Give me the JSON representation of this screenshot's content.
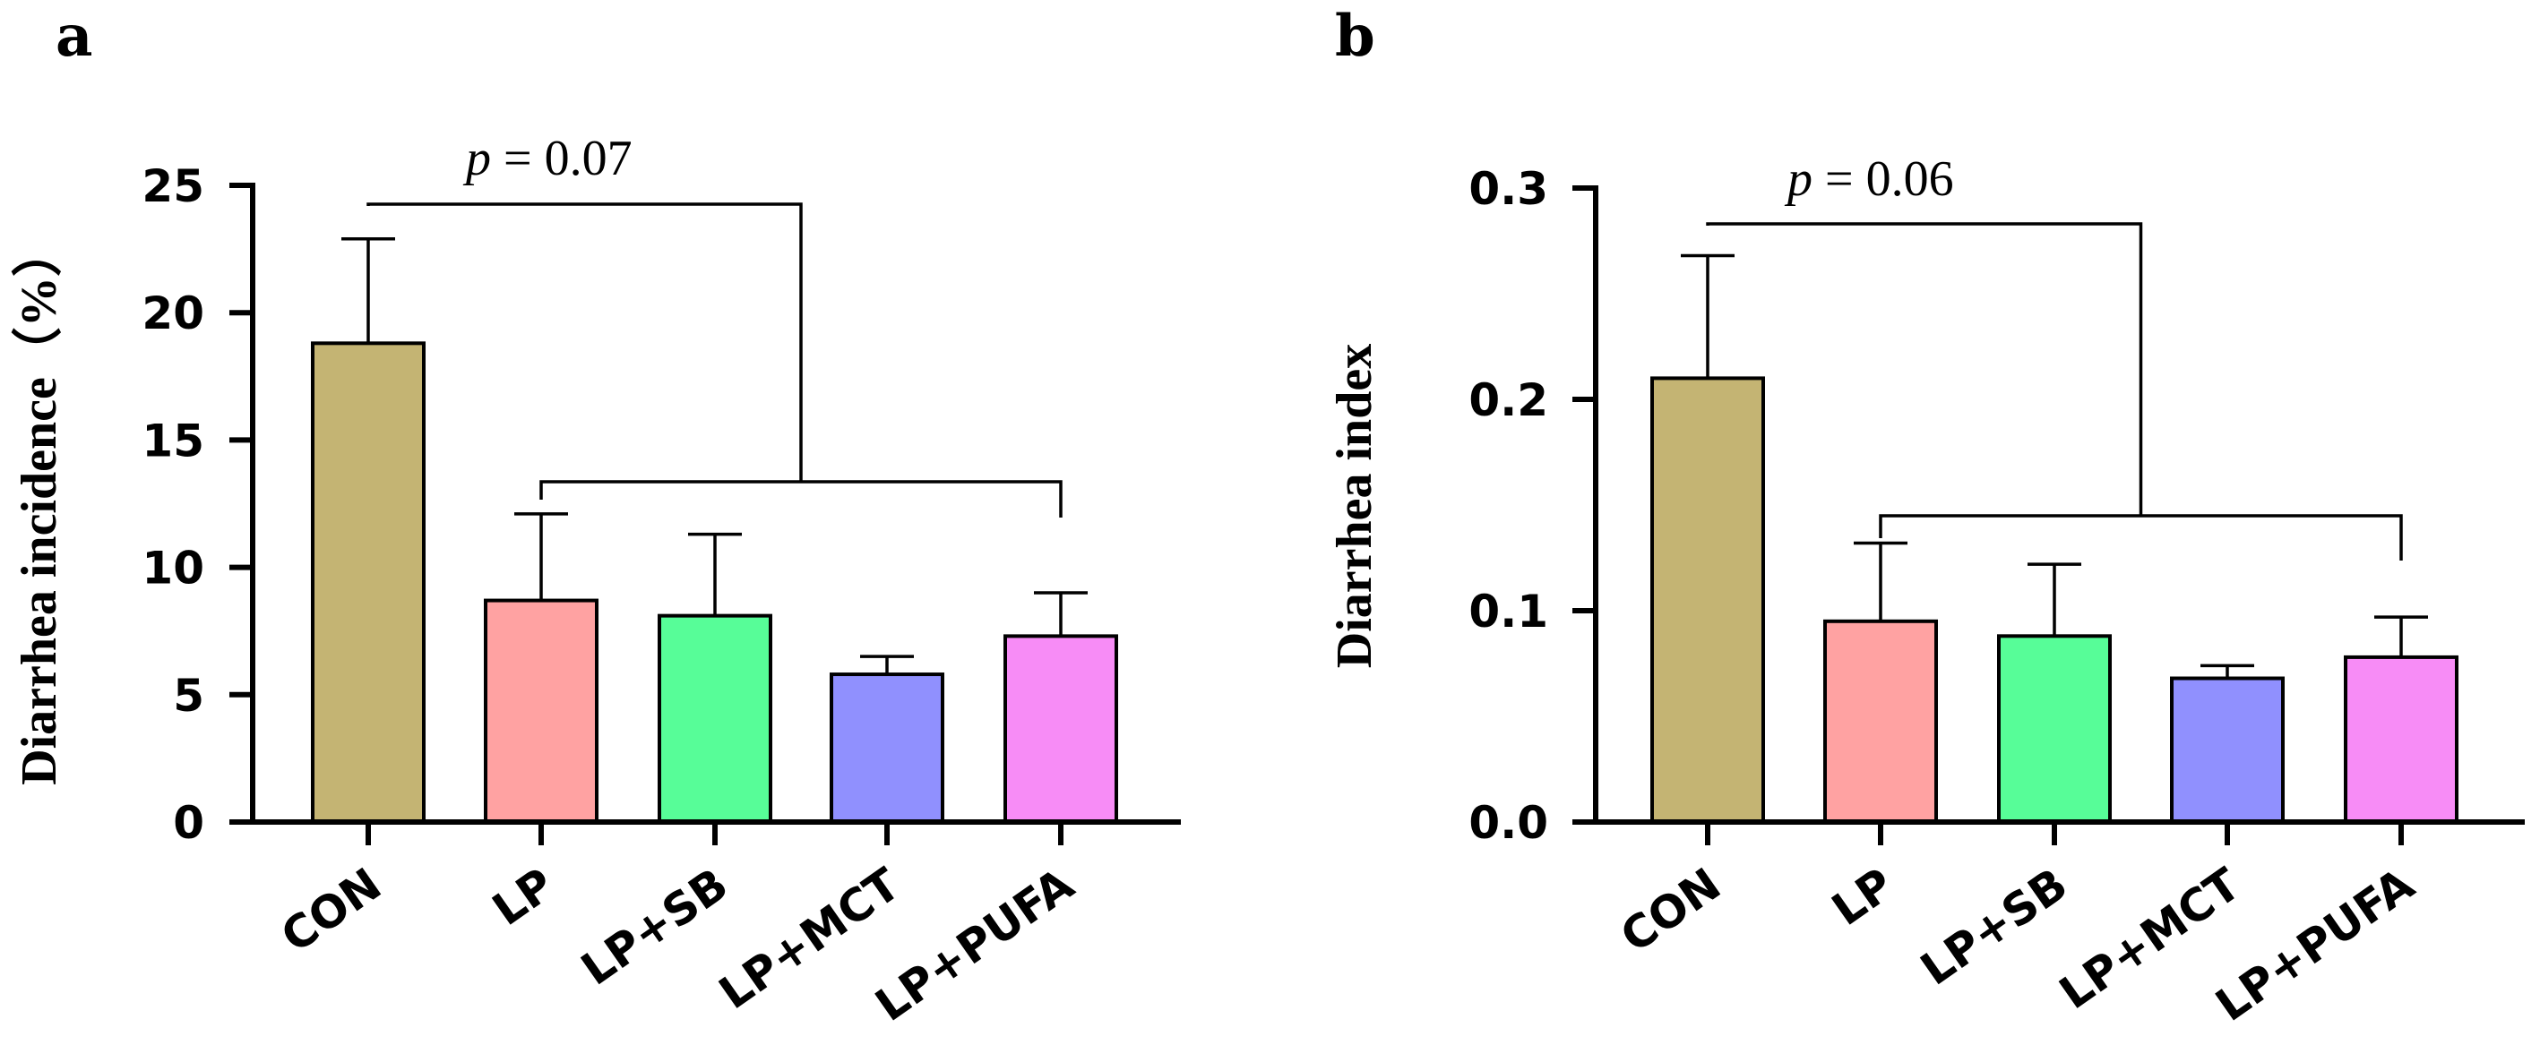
{
  "chart_data": [
    {
      "panel": "a",
      "type": "bar",
      "ylabel": "Diarrhea incidence（%）",
      "ylim": [
        0,
        25
      ],
      "yticks": [
        0,
        5,
        10,
        15,
        20,
        25
      ],
      "ytick_labels": [
        "0",
        "5",
        "10",
        "15",
        "20",
        "25"
      ],
      "categories": [
        "CON",
        "LP",
        "LP+SB",
        "LP+MCT",
        "LP+PUFA"
      ],
      "values": [
        18.8,
        8.7,
        8.1,
        5.8,
        7.3
      ],
      "errors": [
        4.1,
        3.4,
        3.2,
        0.7,
        1.7
      ],
      "colors": [
        "#c4b473",
        "#ffa2a2",
        "#57fd98",
        "#9090fe",
        "#f78cf6"
      ],
      "annotation": {
        "var": "p",
        "rest": " = 0.07"
      }
    },
    {
      "panel": "b",
      "type": "bar",
      "ylabel": "Diarrhea index",
      "ylim": [
        0,
        0.3
      ],
      "yticks": [
        0,
        0.1,
        0.2,
        0.3
      ],
      "ytick_labels": [
        "0.0",
        "0.1",
        "0.2",
        "0.3"
      ],
      "categories": [
        "CON",
        "LP",
        "LP+SB",
        "LP+MCT",
        "LP+PUFA"
      ],
      "values": [
        0.21,
        0.095,
        0.088,
        0.068,
        0.078
      ],
      "errors": [
        0.058,
        0.037,
        0.034,
        0.006,
        0.019
      ],
      "colors": [
        "#c4b473",
        "#ffa2a2",
        "#57fd98",
        "#9090fe",
        "#f78cf6"
      ],
      "annotation": {
        "var": "p",
        "rest": " = 0.06"
      }
    }
  ]
}
